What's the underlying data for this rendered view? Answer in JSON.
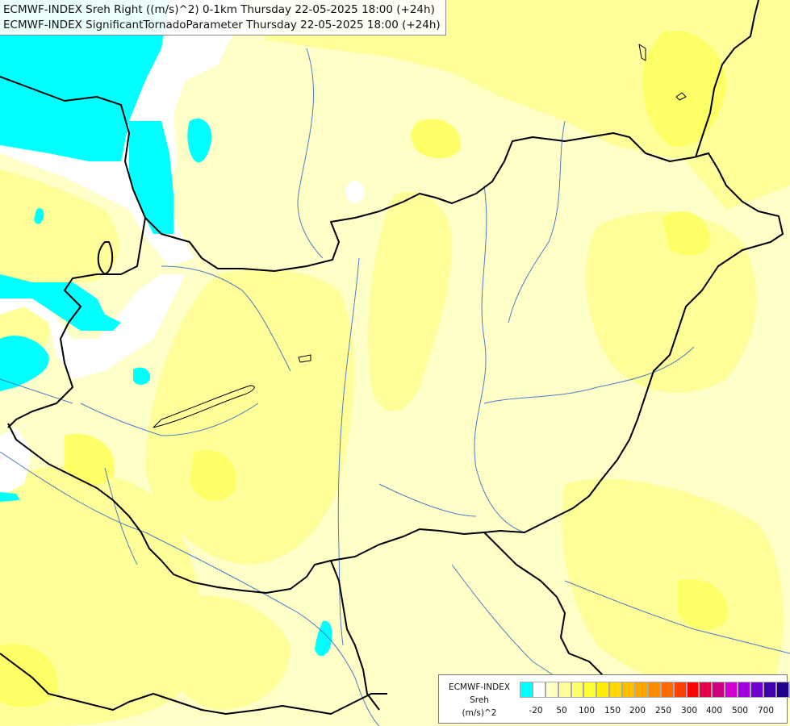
{
  "title_lines": [
    "ECMWF-INDEX Sreh Right ((m/s)^2) 0-1km Thursday 22-05-2025 18:00 (+24h)",
    "ECMWF-INDEX SignificantTornadoParameter Thursday 22-05-2025 18:00 (+24h)"
  ],
  "legend": {
    "label_lines": [
      "ECMWF-INDEX",
      "Sreh",
      "(m/s)^2"
    ],
    "colors": [
      "#00ffff",
      "#ffffff",
      "#ffffc8",
      "#ffff99",
      "#ffff66",
      "#ffff33",
      "#ffee00",
      "#ffd700",
      "#ffbf00",
      "#ffa500",
      "#ff8c00",
      "#ff6a00",
      "#ff4000",
      "#ff0000",
      "#e6004c",
      "#cc0080",
      "#d000d0",
      "#a000e0",
      "#7000d0",
      "#4000b0",
      "#20008a",
      "#000080"
    ],
    "tick_labels": [
      "-20",
      "50",
      "100",
      "150",
      "200",
      "250",
      "300",
      "400",
      "500",
      "700"
    ]
  },
  "map_colors": {
    "background": "#ffffc8",
    "cyan": "#00ffff",
    "white": "#ffffff",
    "light_yellow": "#ffff99",
    "yellow": "#ffff66",
    "bright_yellow": "#ffff33",
    "border": "#000000",
    "river": "#3b6fc4"
  }
}
